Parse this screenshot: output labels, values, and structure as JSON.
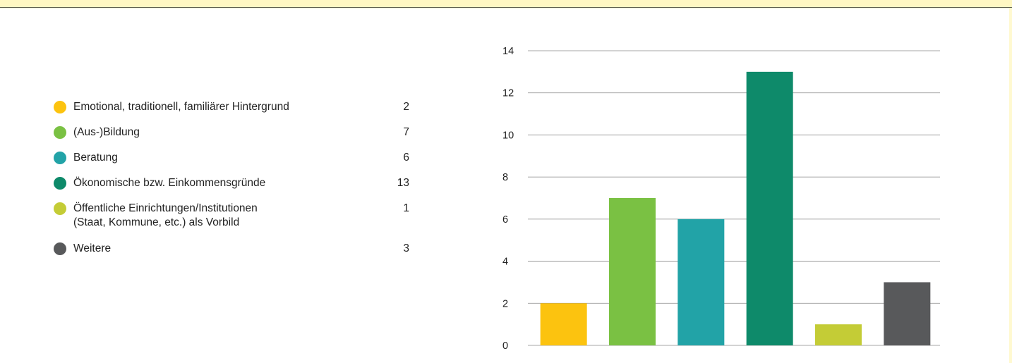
{
  "chart_data": {
    "type": "bar",
    "categories": [
      "Emotional, traditionell, familiärer Hintergrund",
      "(Aus-)Bildung",
      "Beratung",
      "Ökonomische bzw. Einkommensgründe",
      "Öffentliche Einrichtungen/Institutionen (Staat, Kommune, etc.) als Vorbild",
      "Weitere"
    ],
    "values": [
      2,
      7,
      6,
      13,
      1,
      3
    ],
    "colors": [
      "#fcc30f",
      "#7ac143",
      "#22a3a7",
      "#0e8a6a",
      "#c4cc36",
      "#58595b"
    ],
    "ylim": [
      0,
      14
    ],
    "yticks": [
      0,
      2,
      4,
      6,
      8,
      10,
      12,
      14
    ],
    "grid": true,
    "legend_position": "left"
  },
  "legend": [
    {
      "label_lines": [
        "Emotional, traditionell, familiärer Hintergrund"
      ],
      "value": "2",
      "color": "#fcc30f"
    },
    {
      "label_lines": [
        "(Aus-)Bildung"
      ],
      "value": "7",
      "color": "#7ac143"
    },
    {
      "label_lines": [
        "Beratung"
      ],
      "value": "6",
      "color": "#22a3a7"
    },
    {
      "label_lines": [
        "Ökonomische bzw. Einkommensgründe"
      ],
      "value": "13",
      "color": "#0e8a6a"
    },
    {
      "label_lines": [
        "Öffentliche Einrichtungen/Institutionen",
        "(Staat, Kommune, etc.) als Vorbild"
      ],
      "value": "1",
      "color": "#c4cc36"
    },
    {
      "label_lines": [
        "Weitere"
      ],
      "value": "3",
      "color": "#58595b"
    }
  ]
}
